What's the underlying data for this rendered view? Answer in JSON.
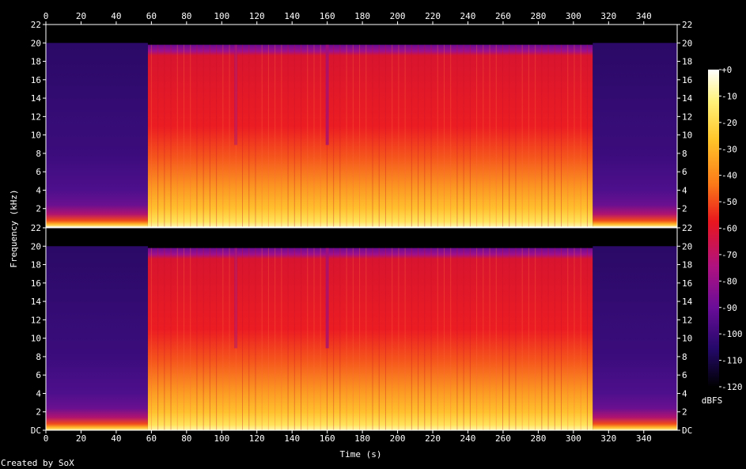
{
  "chart_data": {
    "type": "heatmap",
    "xlabel": "Time (s)",
    "ylabel": "Frequency (kHz)",
    "x_ticks": [
      0,
      20,
      40,
      60,
      80,
      100,
      120,
      140,
      160,
      180,
      200,
      220,
      240,
      260,
      280,
      300,
      320,
      340
    ],
    "xlim": [
      0,
      359
    ],
    "channels": [
      {
        "name": "",
        "y_ticks": [
          "22",
          "20",
          "18",
          "16",
          "14",
          "12",
          "10",
          "8",
          "6",
          "4",
          "2"
        ],
        "ylim": [
          0,
          22
        ]
      },
      {
        "name": "",
        "y_ticks": [
          "22",
          "20",
          "18",
          "16",
          "14",
          "12",
          "10",
          "8",
          "6",
          "4",
          "2",
          "DC"
        ],
        "ylim": [
          0,
          22
        ]
      }
    ],
    "colorbar": {
      "label": "dBFS",
      "ticks": [
        "+0",
        "-10",
        "-20",
        "-30",
        "-40",
        "-50",
        "-60",
        "-70",
        "-80",
        "-90",
        "-100",
        "-110",
        "-120"
      ],
      "range": [
        -120,
        0
      ]
    },
    "segments": [
      {
        "start": 0,
        "end": 58,
        "level": "quiet"
      },
      {
        "start": 58,
        "end": 311,
        "level": "loud"
      },
      {
        "start": 311,
        "end": 359,
        "level": "quiet"
      }
    ],
    "cutoff_khz": 19.8,
    "credit": "Created by SoX",
    "colors": {
      "quiet": "#3a0a78",
      "loud_high": "#e5162a",
      "loud_low": "#ffcc33",
      "background": "#000000"
    }
  }
}
